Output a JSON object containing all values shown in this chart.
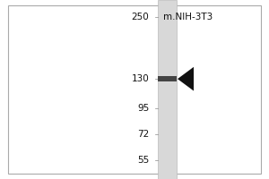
{
  "title": "m.NIH-3T3",
  "mw_markers": [
    250,
    130,
    95,
    72,
    55
  ],
  "band_mw": 130,
  "bg_color": "#ffffff",
  "border_color": "#aaaaaa",
  "lane_color": "#d8d8d8",
  "band_color": "#444444",
  "arrow_color": "#111111",
  "text_color": "#111111",
  "fig_width": 3.0,
  "fig_height": 2.0,
  "mw_min": 45,
  "mw_max": 300
}
